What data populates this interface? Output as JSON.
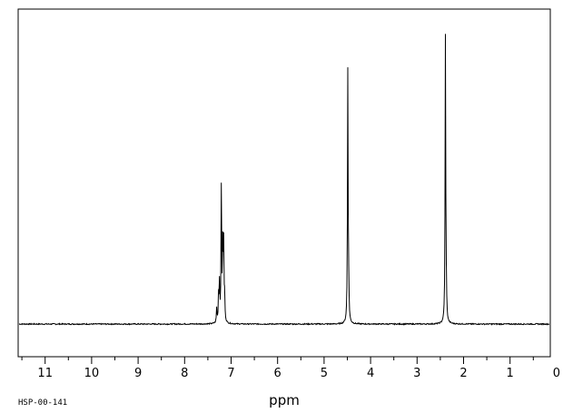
{
  "chart_data": {
    "type": "line",
    "xlabel": "ppm",
    "x_axis_reversed": true,
    "xlim": [
      11.5,
      -0.3
    ],
    "ylim": [
      -0.1,
      1.0
    ],
    "x_ticks": [
      "11",
      "10",
      "9",
      "8",
      "7",
      "6",
      "5",
      "4",
      "3",
      "2",
      "1",
      "0"
    ],
    "x_tick_values": [
      11,
      10,
      9,
      8,
      7,
      6,
      5,
      4,
      3,
      2,
      1,
      0
    ],
    "grid": false,
    "legend": "none",
    "line_color": "#000000",
    "peaks": [
      {
        "ppm": 7.31,
        "height": 0.05
      },
      {
        "ppm": 7.27,
        "height": 0.09
      },
      {
        "ppm": 7.25,
        "height": 0.13
      },
      {
        "ppm": 7.21,
        "height": 0.46
      },
      {
        "ppm": 7.18,
        "height": 0.25
      },
      {
        "ppm": 7.16,
        "height": 0.26
      },
      {
        "ppm": 7.14,
        "height": 0.08
      },
      {
        "ppm": 4.49,
        "height": 0.88
      },
      {
        "ppm": 4.47,
        "height": 0.09
      },
      {
        "ppm": 2.39,
        "height": 1.0
      },
      {
        "ppm": 2.37,
        "height": 0.06
      }
    ]
  },
  "footer": {
    "code": "HSP-00-141"
  }
}
